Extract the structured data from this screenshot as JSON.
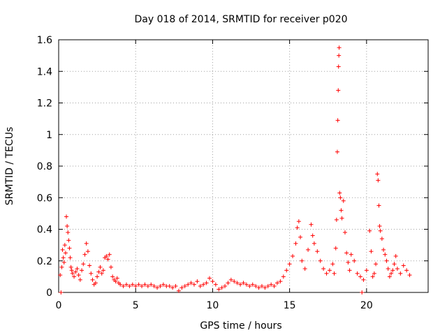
{
  "chart_data": {
    "type": "scatter",
    "title": "Day 018 of 2014, SRMTID for receiver p020",
    "xlabel": "GPS time / hours",
    "ylabel": "SRMTID / TECUs",
    "xlim": [
      0,
      24
    ],
    "ylim": [
      0,
      1.6
    ],
    "xticks": [
      0,
      5,
      10,
      15,
      20
    ],
    "xtick_labels": [
      "0",
      "5",
      "10",
      "15",
      "20"
    ],
    "yticks": [
      0,
      0.2,
      0.4,
      0.6,
      0.8,
      1.0,
      1.2,
      1.4,
      1.6
    ],
    "ytick_labels": [
      "0",
      "0.2",
      "0.4",
      "0.6",
      "0.8",
      "1",
      "1.2",
      "1.4",
      "1.6"
    ],
    "grid": true,
    "marker": "+",
    "color": "#ff0000",
    "series": [
      {
        "name": "SRMTID",
        "points": [
          [
            0.1,
            0.11
          ],
          [
            0.15,
            0.0
          ],
          [
            0.2,
            0.16
          ],
          [
            0.25,
            0.27
          ],
          [
            0.3,
            0.22
          ],
          [
            0.35,
            0.19
          ],
          [
            0.4,
            0.3
          ],
          [
            0.45,
            0.25
          ],
          [
            0.5,
            0.48
          ],
          [
            0.55,
            0.42
          ],
          [
            0.6,
            0.38
          ],
          [
            0.65,
            0.33
          ],
          [
            0.7,
            0.28
          ],
          [
            0.75,
            0.22
          ],
          [
            0.8,
            0.16
          ],
          [
            0.85,
            0.14
          ],
          [
            0.9,
            0.12
          ],
          [
            1.0,
            0.1
          ],
          [
            1.1,
            0.13
          ],
          [
            1.2,
            0.15
          ],
          [
            1.3,
            0.11
          ],
          [
            1.4,
            0.08
          ],
          [
            1.5,
            0.14
          ],
          [
            1.6,
            0.18
          ],
          [
            1.7,
            0.24
          ],
          [
            1.8,
            0.31
          ],
          [
            1.9,
            0.26
          ],
          [
            2.0,
            0.17
          ],
          [
            2.1,
            0.12
          ],
          [
            2.2,
            0.08
          ],
          [
            2.3,
            0.05
          ],
          [
            2.4,
            0.06
          ],
          [
            2.5,
            0.1
          ],
          [
            2.6,
            0.13
          ],
          [
            2.7,
            0.16
          ],
          [
            2.8,
            0.12
          ],
          [
            2.9,
            0.14
          ],
          [
            3.0,
            0.22
          ],
          [
            3.1,
            0.23
          ],
          [
            3.2,
            0.21
          ],
          [
            3.3,
            0.24
          ],
          [
            3.4,
            0.16
          ],
          [
            3.5,
            0.1
          ],
          [
            3.6,
            0.08
          ],
          [
            3.7,
            0.07
          ],
          [
            3.8,
            0.09
          ],
          [
            3.9,
            0.06
          ],
          [
            4.0,
            0.05
          ],
          [
            4.2,
            0.04
          ],
          [
            4.4,
            0.05
          ],
          [
            4.6,
            0.04
          ],
          [
            4.8,
            0.05
          ],
          [
            5.0,
            0.04
          ],
          [
            5.2,
            0.05
          ],
          [
            5.4,
            0.04
          ],
          [
            5.6,
            0.05
          ],
          [
            5.8,
            0.04
          ],
          [
            6.0,
            0.05
          ],
          [
            6.2,
            0.04
          ],
          [
            6.4,
            0.03
          ],
          [
            6.6,
            0.04
          ],
          [
            6.8,
            0.05
          ],
          [
            7.0,
            0.04
          ],
          [
            7.2,
            0.04
          ],
          [
            7.4,
            0.03
          ],
          [
            7.6,
            0.04
          ],
          [
            7.8,
            0.01
          ],
          [
            8.0,
            0.03
          ],
          [
            8.2,
            0.04
          ],
          [
            8.4,
            0.05
          ],
          [
            8.6,
            0.06
          ],
          [
            8.8,
            0.05
          ],
          [
            9.0,
            0.07
          ],
          [
            9.2,
            0.04
          ],
          [
            9.4,
            0.05
          ],
          [
            9.6,
            0.06
          ],
          [
            9.8,
            0.09
          ],
          [
            10.0,
            0.07
          ],
          [
            10.2,
            0.05
          ],
          [
            10.4,
            0.02
          ],
          [
            10.6,
            0.03
          ],
          [
            10.8,
            0.04
          ],
          [
            11.0,
            0.06
          ],
          [
            11.2,
            0.08
          ],
          [
            11.4,
            0.07
          ],
          [
            11.6,
            0.06
          ],
          [
            11.8,
            0.05
          ],
          [
            12.0,
            0.06
          ],
          [
            12.2,
            0.05
          ],
          [
            12.4,
            0.04
          ],
          [
            12.6,
            0.05
          ],
          [
            12.8,
            0.04
          ],
          [
            13.0,
            0.03
          ],
          [
            13.2,
            0.04
          ],
          [
            13.4,
            0.03
          ],
          [
            13.6,
            0.04
          ],
          [
            13.8,
            0.05
          ],
          [
            14.0,
            0.04
          ],
          [
            14.2,
            0.06
          ],
          [
            14.4,
            0.07
          ],
          [
            14.6,
            0.1
          ],
          [
            14.8,
            0.14
          ],
          [
            15.0,
            0.18
          ],
          [
            15.2,
            0.23
          ],
          [
            15.4,
            0.31
          ],
          [
            15.5,
            0.41
          ],
          [
            15.6,
            0.45
          ],
          [
            15.7,
            0.35
          ],
          [
            15.8,
            0.2
          ],
          [
            16.0,
            0.15
          ],
          [
            16.2,
            0.27
          ],
          [
            16.4,
            0.43
          ],
          [
            16.5,
            0.36
          ],
          [
            16.6,
            0.31
          ],
          [
            16.8,
            0.26
          ],
          [
            17.0,
            0.2
          ],
          [
            17.2,
            0.15
          ],
          [
            17.4,
            0.12
          ],
          [
            17.6,
            0.14
          ],
          [
            17.8,
            0.18
          ],
          [
            17.9,
            0.12
          ],
          [
            18.0,
            0.28
          ],
          [
            18.05,
            0.46
          ],
          [
            18.1,
            0.89
          ],
          [
            18.13,
            1.09
          ],
          [
            18.16,
            1.28
          ],
          [
            18.18,
            1.43
          ],
          [
            18.2,
            1.5
          ],
          [
            18.22,
            1.55
          ],
          [
            18.25,
            0.63
          ],
          [
            18.3,
            0.6
          ],
          [
            18.35,
            0.52
          ],
          [
            18.4,
            0.47
          ],
          [
            18.5,
            0.58
          ],
          [
            18.6,
            0.38
          ],
          [
            18.7,
            0.25
          ],
          [
            18.8,
            0.19
          ],
          [
            18.9,
            0.14
          ],
          [
            19.0,
            0.24
          ],
          [
            19.2,
            0.2
          ],
          [
            19.4,
            0.12
          ],
          [
            19.6,
            0.1
          ],
          [
            19.7,
            0.0
          ],
          [
            19.8,
            0.08
          ],
          [
            20.0,
            0.14
          ],
          [
            20.2,
            0.39
          ],
          [
            20.3,
            0.26
          ],
          [
            20.4,
            0.1
          ],
          [
            20.5,
            0.12
          ],
          [
            20.6,
            0.18
          ],
          [
            20.7,
            0.75
          ],
          [
            20.75,
            0.71
          ],
          [
            20.8,
            0.55
          ],
          [
            20.85,
            0.42
          ],
          [
            20.9,
            0.39
          ],
          [
            21.0,
            0.34
          ],
          [
            21.1,
            0.27
          ],
          [
            21.2,
            0.24
          ],
          [
            21.3,
            0.2
          ],
          [
            21.4,
            0.15
          ],
          [
            21.5,
            0.1
          ],
          [
            21.6,
            0.12
          ],
          [
            21.7,
            0.14
          ],
          [
            21.8,
            0.18
          ],
          [
            21.9,
            0.23
          ],
          [
            22.0,
            0.15
          ],
          [
            22.2,
            0.12
          ],
          [
            22.4,
            0.17
          ],
          [
            22.6,
            0.14
          ],
          [
            22.8,
            0.11
          ]
        ]
      }
    ]
  }
}
